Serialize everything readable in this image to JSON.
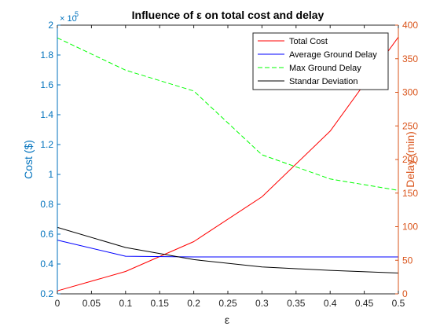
{
  "chart_data": {
    "type": "line",
    "title": "Influence of ε on total cost and delay",
    "xlabel": "ε",
    "ylabel_left": "Cost ($)",
    "ylabel_right": "Delay (min)",
    "left_multiplier_label": "× 10",
    "left_multiplier_exponent": "5",
    "xlim": [
      0,
      0.5
    ],
    "ylim_left": [
      20000,
      200000
    ],
    "ylim_right": [
      0,
      400
    ],
    "x_ticks": [
      0,
      0.05,
      0.1,
      0.15,
      0.2,
      0.25,
      0.3,
      0.35,
      0.4,
      0.45,
      0.5
    ],
    "x_tick_labels": [
      "0",
      "0.05",
      "0.1",
      "0.15",
      "0.2",
      "0.25",
      "0.3",
      "0.35",
      "0.4",
      "0.45",
      "0.5"
    ],
    "y_left_ticks": [
      20000,
      40000,
      60000,
      80000,
      100000,
      120000,
      140000,
      160000,
      180000,
      200000
    ],
    "y_left_tick_labels": [
      "0.2",
      "0.4",
      "0.6",
      "0.8",
      "1",
      "1.2",
      "1.4",
      "1.6",
      "1.8",
      "2"
    ],
    "y_right_ticks": [
      0,
      50,
      100,
      150,
      200,
      250,
      300,
      350,
      400
    ],
    "y_right_tick_labels": [
      "0",
      "50",
      "100",
      "150",
      "200",
      "250",
      "300",
      "350",
      "400"
    ],
    "x": [
      0,
      0.1,
      0.2,
      0.3,
      0.4,
      0.5
    ],
    "legend_position": "top-right",
    "grid": false,
    "colors": {
      "left_axis": "#0072BD",
      "right_axis": "#D95319",
      "axes": "#262626"
    },
    "series": [
      {
        "name": "Total Cost",
        "axis": "left",
        "color": "#ff0000",
        "dash": "solid",
        "values": [
          22000,
          35000,
          55000,
          85000,
          129000,
          192000
        ]
      },
      {
        "name": "Average Ground Delay",
        "axis": "right",
        "color": "#0000ff",
        "dash": "solid",
        "values": [
          80,
          56,
          55,
          55,
          55,
          55
        ]
      },
      {
        "name": "Max Ground Delay",
        "axis": "right",
        "color": "#00ff00",
        "dash": "dashed",
        "values": [
          381,
          333,
          302,
          207,
          171,
          154
        ]
      },
      {
        "name": "Standar Deviation",
        "axis": "right",
        "color": "#000000",
        "dash": "solid",
        "values": [
          99,
          69,
          51,
          40,
          35,
          31
        ]
      }
    ]
  }
}
